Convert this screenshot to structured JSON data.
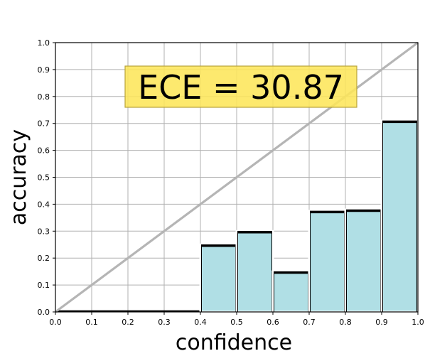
{
  "chart_data": {
    "type": "bar",
    "title": "",
    "xlabel": "confidence",
    "ylabel": "accuracy",
    "xlim": [
      0.0,
      1.0
    ],
    "ylim": [
      0.0,
      1.0
    ],
    "xticks": [
      "0.0",
      "0.1",
      "0.2",
      "0.3",
      "0.4",
      "0.5",
      "0.6",
      "0.7",
      "0.8",
      "0.9",
      "1.0"
    ],
    "yticks": [
      "0.0",
      "0.1",
      "0.2",
      "0.3",
      "0.4",
      "0.5",
      "0.6",
      "0.7",
      "0.8",
      "0.9",
      "1.0"
    ],
    "grid": true,
    "bins": [
      {
        "x0": 0.0,
        "x1": 0.1,
        "accuracy": 0.0
      },
      {
        "x0": 0.1,
        "x1": 0.2,
        "accuracy": 0.0
      },
      {
        "x0": 0.2,
        "x1": 0.3,
        "accuracy": 0.0
      },
      {
        "x0": 0.3,
        "x1": 0.4,
        "accuracy": 0.0
      },
      {
        "x0": 0.4,
        "x1": 0.5,
        "accuracy": 0.25
      },
      {
        "x0": 0.5,
        "x1": 0.6,
        "accuracy": 0.3
      },
      {
        "x0": 0.6,
        "x1": 0.7,
        "accuracy": 0.15
      },
      {
        "x0": 0.7,
        "x1": 0.8,
        "accuracy": 0.375
      },
      {
        "x0": 0.8,
        "x1": 0.9,
        "accuracy": 0.38
      },
      {
        "x0": 0.9,
        "x1": 1.0,
        "accuracy": 0.71
      }
    ],
    "diagonal": {
      "from": [
        0.0,
        0.0
      ],
      "to": [
        1.0,
        1.0
      ]
    },
    "annotation": "ECE = 30.87",
    "colors": {
      "bar_fill": "#b0dfe5",
      "bar_edge": "#000000",
      "diagonal": "#b5b5b5",
      "grid": "#b0b0b0",
      "annotation_bg": "#fde65a",
      "annotation_edge": "#b8a33a"
    }
  }
}
